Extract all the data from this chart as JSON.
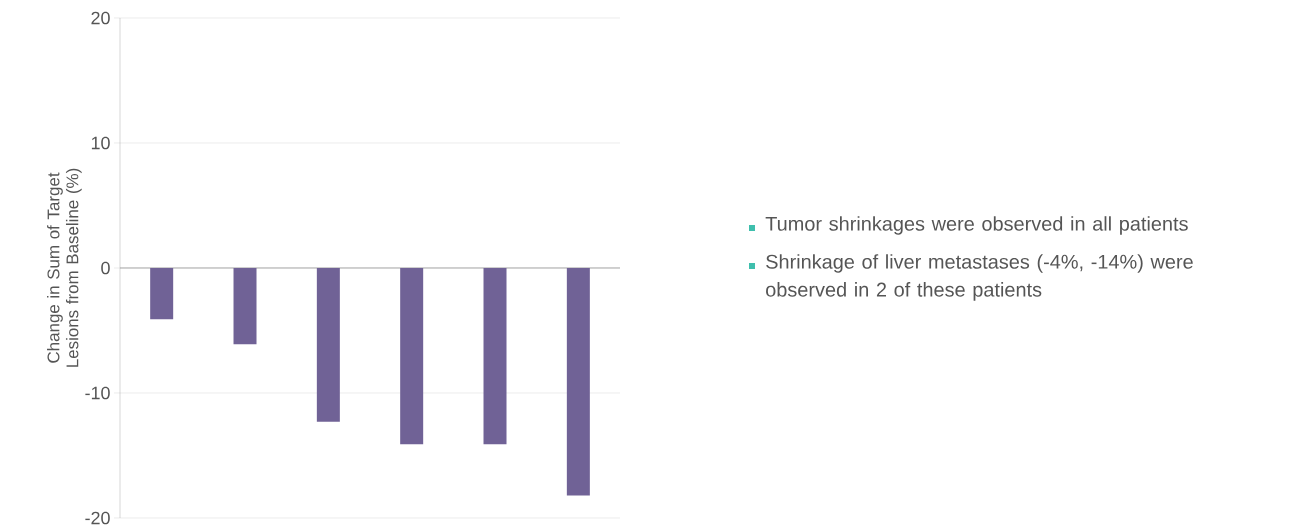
{
  "chart_data": {
    "type": "bar",
    "ylabel": "Change in Sum of Target Lesions from Baseline (%)",
    "categories": [
      null,
      null,
      null,
      null,
      null,
      null
    ],
    "values": [
      -4.1,
      -6.1,
      -12.3,
      -14.1,
      -14.1,
      -18.2
    ],
    "color": "#706296",
    "ylim": [
      -20,
      20
    ],
    "yticks": [
      -20,
      -10,
      0,
      10,
      20
    ],
    "grid": "y",
    "annotations": [
      "Tumor shrinkages were observed in all patients",
      "Shrinkage of liver metastases (-4%, -14%) were observed in 2 of these patients"
    ]
  }
}
